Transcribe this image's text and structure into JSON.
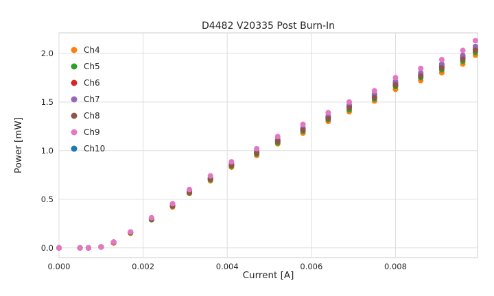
{
  "chart_data": {
    "type": "scatter",
    "title": "D4482 V20335 Post Burn-In",
    "xlabel": "Current [A]",
    "ylabel": "Power [mW]",
    "xlim": [
      0.0,
      0.00995
    ],
    "ylim": [
      -0.1,
      2.21
    ],
    "xticks": [
      0.0,
      0.002,
      0.004,
      0.006,
      0.008
    ],
    "xtick_labels": [
      "0.000",
      "0.002",
      "0.004",
      "0.006",
      "0.008"
    ],
    "yticks": [
      0.0,
      0.5,
      1.0,
      1.5,
      2.0
    ],
    "ytick_labels": [
      "0.0",
      "0.5",
      "1.0",
      "1.5",
      "2.0"
    ],
    "grid": true,
    "legend_position": "upper left",
    "marker": "circle",
    "grid_color": "#dddddd",
    "spine_color": "#cccccc",
    "text_color": "#262626",
    "x": [
      0.0,
      0.0005,
      0.0007,
      0.001,
      0.0013,
      0.0017,
      0.0022,
      0.0027,
      0.0031,
      0.0036,
      0.0041,
      0.0047,
      0.0052,
      0.0058,
      0.0064,
      0.0069,
      0.0075,
      0.008,
      0.0086,
      0.0091,
      0.0096,
      0.0099
    ],
    "series": [
      {
        "name": "Ch4",
        "color": "#ff7f0e",
        "values": [
          0.0,
          0.0,
          0.0,
          0.01,
          0.05,
          0.15,
          0.29,
          0.42,
          0.56,
          0.69,
          0.83,
          0.95,
          1.07,
          1.18,
          1.3,
          1.4,
          1.51,
          1.63,
          1.72,
          1.8,
          1.89,
          1.98
        ]
      },
      {
        "name": "Ch5",
        "color": "#2ca02c",
        "values": [
          0.0,
          0.0,
          0.0,
          0.01,
          0.055,
          0.155,
          0.29,
          0.43,
          0.565,
          0.7,
          0.84,
          0.965,
          1.08,
          1.2,
          1.32,
          1.42,
          1.53,
          1.66,
          1.75,
          1.83,
          1.92,
          2.01
        ]
      },
      {
        "name": "Ch6",
        "color": "#d62728",
        "values": [
          0.0,
          0.0,
          0.0,
          0.01,
          0.055,
          0.16,
          0.295,
          0.435,
          0.575,
          0.71,
          0.85,
          0.98,
          1.1,
          1.22,
          1.34,
          1.45,
          1.55,
          1.68,
          1.77,
          1.86,
          1.95,
          2.04
        ]
      },
      {
        "name": "Ch7",
        "color": "#9467bd",
        "values": [
          0.0,
          0.0,
          0.0,
          0.01,
          0.06,
          0.16,
          0.3,
          0.44,
          0.585,
          0.72,
          0.865,
          0.995,
          1.115,
          1.235,
          1.355,
          1.47,
          1.58,
          1.71,
          1.8,
          1.89,
          1.98,
          2.07
        ]
      },
      {
        "name": "Ch8",
        "color": "#8c564b",
        "values": [
          0.0,
          0.0,
          0.0,
          0.01,
          0.055,
          0.16,
          0.295,
          0.43,
          0.57,
          0.71,
          0.85,
          0.975,
          1.095,
          1.21,
          1.33,
          1.44,
          1.545,
          1.675,
          1.765,
          1.85,
          1.94,
          2.03
        ]
      },
      {
        "name": "Ch9",
        "color": "#e377c2",
        "values": [
          0.0,
          0.0,
          0.0,
          0.01,
          0.06,
          0.165,
          0.31,
          0.455,
          0.6,
          0.74,
          0.885,
          1.02,
          1.145,
          1.27,
          1.39,
          1.5,
          1.615,
          1.75,
          1.845,
          1.935,
          2.03,
          2.13
        ]
      },
      {
        "name": "Ch10",
        "color": "#1f77b4",
        "values": [
          0.0,
          0.0,
          0.0,
          0.01,
          0.06,
          0.16,
          0.3,
          0.44,
          0.58,
          0.72,
          0.86,
          0.99,
          1.11,
          1.23,
          1.35,
          1.46,
          1.57,
          1.7,
          1.79,
          1.88,
          1.97,
          2.06
        ]
      }
    ],
    "draw_order": [
      "Ch10",
      "Ch4",
      "Ch5",
      "Ch6",
      "Ch7",
      "Ch8",
      "Ch9"
    ]
  }
}
